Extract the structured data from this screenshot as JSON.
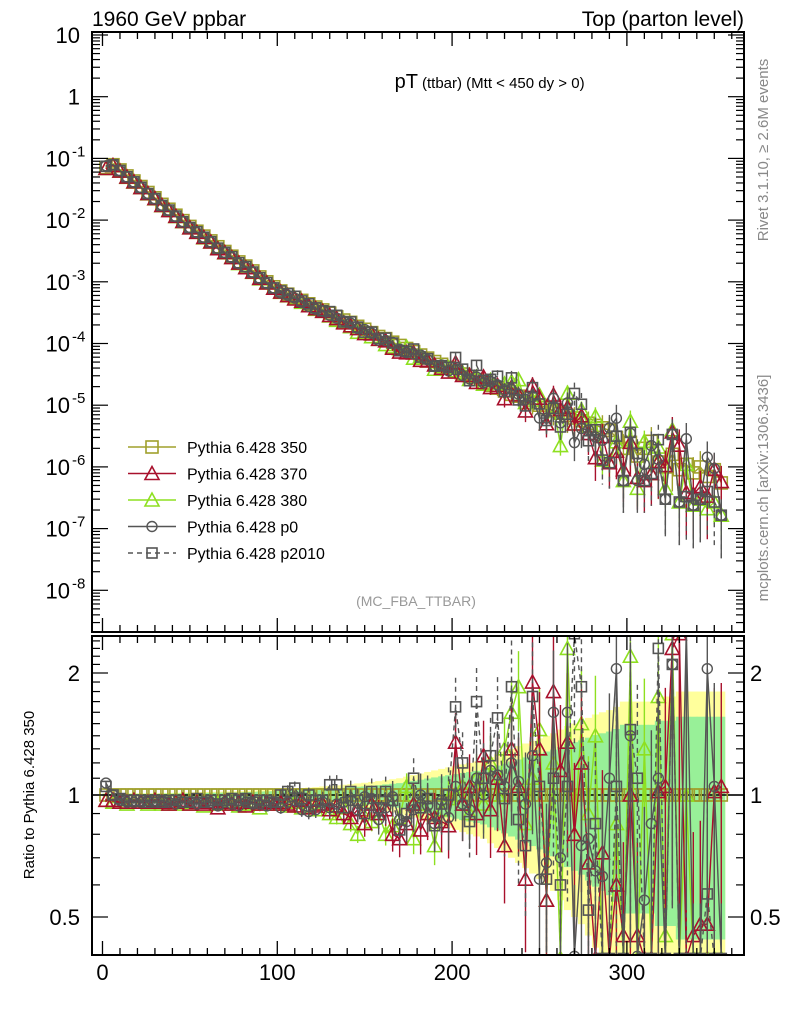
{
  "header": {
    "left": "1960 GeV ppbar",
    "right": "Top (parton level)"
  },
  "side_text": {
    "rivet": "Rivet 3.1.10, ≥ 2.6M events",
    "mcplots": "mcplots.cern.ch [arXiv:1306.3436]"
  },
  "chart_data": {
    "type": "line",
    "title": "pT",
    "title_sub": "(ttbar) (Mtt < 450 dy > 0)",
    "analysis_label": "(MC_FBA_TTBAR)",
    "xlabel": "",
    "ylabel_ratio": "Ratio to Pythia 6.428 350",
    "xlim": [
      -6,
      367
    ],
    "ylim_main_log": [
      3e-09,
      12
    ],
    "ylim_ratio": [
      0.4,
      2.47
    ],
    "x_ticks": [
      "0",
      "100",
      "200",
      "300"
    ],
    "x_tick_values": [
      0,
      100,
      200,
      300
    ],
    "y_ticks_main": [
      {
        "base": "10",
        "exp": ""
      },
      {
        "base": "1",
        "exp": ""
      },
      {
        "base": "10",
        "exp": "-1"
      },
      {
        "base": "10",
        "exp": "-2"
      },
      {
        "base": "10",
        "exp": "-3"
      },
      {
        "base": "10",
        "exp": "-4"
      },
      {
        "base": "10",
        "exp": "-5"
      },
      {
        "base": "10",
        "exp": "-6"
      },
      {
        "base": "10",
        "exp": "-7"
      },
      {
        "base": "10",
        "exp": "-8"
      }
    ],
    "y_tick_values_main_log10": [
      1,
      0,
      -1,
      -2,
      -3,
      -4,
      -5,
      -6,
      -7,
      -8
    ],
    "y_ticks_ratio": [
      "2",
      "1",
      "0.5"
    ],
    "y_tick_values_ratio": [
      2,
      1,
      0.5
    ],
    "legend_placement": "lower-left",
    "x": [
      2,
      6,
      10,
      14,
      18,
      22,
      26,
      30,
      34,
      38,
      42,
      46,
      50,
      54,
      58,
      62,
      66,
      70,
      74,
      78,
      82,
      86,
      90,
      94,
      98,
      102,
      106,
      110,
      114,
      118,
      122,
      126,
      130,
      134,
      138,
      142,
      146,
      150,
      154,
      158,
      162,
      166,
      170,
      174,
      178,
      182,
      186,
      190,
      194,
      198,
      202,
      206,
      210,
      214,
      218,
      222,
      226,
      230,
      234,
      238,
      242,
      246,
      250,
      254,
      258,
      262,
      266,
      270,
      274,
      278,
      282,
      286,
      290,
      294,
      298,
      302,
      306,
      310,
      314,
      318,
      322,
      326,
      330,
      334,
      338,
      342,
      346,
      350,
      354
    ],
    "reference_values": [
      0.071,
      0.079,
      0.065,
      0.052,
      0.043,
      0.035,
      0.028,
      0.023,
      0.018,
      0.015,
      0.012,
      0.0098,
      0.0079,
      0.0066,
      0.0055,
      0.0046,
      0.0037,
      0.0031,
      0.0026,
      0.0021,
      0.0018,
      0.0015,
      0.0012,
      0.001,
      0.00083,
      0.00071,
      0.00063,
      0.00056,
      0.0005,
      0.00044,
      0.00039,
      0.00035,
      0.00031,
      0.00027,
      0.00024,
      0.00022,
      0.00019,
      0.00017,
      0.00015,
      0.00013,
      0.00012,
      0.000105,
      9.3e-05,
      8.3e-05,
      7.4e-05,
      6.5e-05,
      5.8e-05,
      5.1e-05,
      4.6e-05,
      4.1e-05,
      3.6e-05,
      3.2e-05,
      2.9e-05,
      2.6e-05,
      2.3e-05,
      2.1e-05,
      1.9e-05,
      1.7e-05,
      1.5e-05,
      1.4e-05,
      1.3e-05,
      1.1e-05,
      1e-05,
      9.1e-06,
      8.1e-06,
      7.4e-06,
      6.8e-06,
      6.2e-06,
      5.6e-06,
      5.1e-06,
      4.7e-06,
      4.3e-06,
      3.9e-06,
      3e-06,
      2e-06,
      2.5e-06,
      1.5e-06,
      2e-06,
      2.6e-06,
      1.2e-06,
      1e-06,
      1.6e-06,
      9e-07,
      1.1e-06,
      8e-07,
      1e-06,
      7e-07,
      9e-07,
      5.5e-07
    ],
    "rel_err_350": [
      0.01,
      0.01,
      0.01,
      0.01,
      0.01,
      0.01,
      0.01,
      0.01,
      0.012,
      0.012,
      0.013,
      0.014,
      0.015,
      0.016,
      0.017,
      0.018,
      0.019,
      0.02,
      0.021,
      0.022,
      0.024,
      0.026,
      0.028,
      0.03,
      0.032,
      0.034,
      0.036,
      0.038,
      0.04,
      0.043,
      0.046,
      0.05,
      0.053,
      0.056,
      0.06,
      0.064,
      0.068,
      0.072,
      0.077,
      0.082,
      0.088,
      0.094,
      0.1,
      0.11,
      0.12,
      0.13,
      0.14,
      0.15,
      0.16,
      0.17,
      0.18,
      0.19,
      0.2,
      0.21,
      0.22,
      0.24,
      0.26,
      0.28,
      0.3,
      0.32,
      0.34,
      0.36,
      0.38,
      0.4,
      0.42,
      0.45,
      0.48,
      0.5,
      0.52,
      0.55,
      0.58,
      0.6,
      0.62,
      0.65,
      0.7,
      0.7,
      0.7,
      0.7,
      0.7,
      0.75,
      0.75,
      0.75,
      0.8,
      0.8,
      0.8,
      0.8,
      0.8,
      0.8,
      0.8
    ],
    "rel_err_380": [
      0.007,
      0.007,
      0.007,
      0.007,
      0.007,
      0.007,
      0.007,
      0.007,
      0.008,
      0.008,
      0.009,
      0.01,
      0.011,
      0.011,
      0.012,
      0.013,
      0.013,
      0.014,
      0.015,
      0.015,
      0.017,
      0.018,
      0.02,
      0.021,
      0.022,
      0.024,
      0.025,
      0.027,
      0.028,
      0.03,
      0.032,
      0.035,
      0.037,
      0.039,
      0.042,
      0.045,
      0.048,
      0.05,
      0.054,
      0.057,
      0.062,
      0.066,
      0.07,
      0.077,
      0.084,
      0.091,
      0.098,
      0.105,
      0.112,
      0.119,
      0.126,
      0.133,
      0.14,
      0.147,
      0.154,
      0.168,
      0.182,
      0.196,
      0.21,
      0.224,
      0.238,
      0.252,
      0.266,
      0.28,
      0.294,
      0.315,
      0.336,
      0.35,
      0.364,
      0.385,
      0.406,
      0.42,
      0.434,
      0.455,
      0.49,
      0.49,
      0.49,
      0.49,
      0.49,
      0.525,
      0.525,
      0.525,
      0.56,
      0.56,
      0.56,
      0.56,
      0.56,
      0.56,
      0.56
    ],
    "series": [
      {
        "name": "Pythia 6.428 350",
        "color": "#a0a02c",
        "marker": "square",
        "dash": false,
        "band": "#ffff9c",
        "ratio": [
          1,
          1,
          1,
          1,
          1,
          1,
          1,
          1,
          1,
          1,
          1,
          1,
          1,
          1,
          1,
          1,
          1,
          1,
          1,
          1,
          1,
          1,
          1,
          1,
          1,
          1,
          1,
          1,
          1,
          1,
          1,
          1,
          1,
          1,
          1,
          1,
          1,
          1,
          1,
          1,
          1,
          1,
          1,
          1,
          1,
          1,
          1,
          1,
          1,
          1,
          1,
          1,
          1,
          1,
          1,
          1,
          1,
          1,
          1,
          1,
          1,
          1,
          1,
          1,
          1,
          1,
          1,
          1,
          1,
          1,
          1,
          1,
          1,
          1,
          1,
          1,
          1,
          1,
          1,
          1,
          1,
          1,
          1,
          1,
          1,
          1,
          1,
          1,
          1
        ]
      },
      {
        "name": "Pythia 6.428 370",
        "color": "#a8102c",
        "marker": "triangle",
        "dash": false,
        "ratio": [
          0.97,
          0.97,
          0.96,
          0.96,
          0.97,
          0.96,
          0.96,
          0.97,
          0.96,
          0.95,
          0.96,
          0.97,
          0.95,
          0.96,
          0.95,
          0.96,
          0.93,
          0.96,
          0.95,
          0.96,
          0.94,
          0.96,
          0.95,
          0.96,
          0.95,
          0.96,
          0.95,
          0.94,
          0.97,
          0.93,
          0.94,
          0.95,
          0.92,
          0.94,
          0.9,
          0.88,
          0.92,
          0.85,
          0.95,
          0.9,
          0.92,
          0.8,
          0.78,
          0.85,
          0.95,
          0.82,
          0.9,
          0.88,
          0.86,
          0.84,
          1.35,
          0.95,
          1.05,
          0.9,
          1.25,
          0.92,
          1.1,
          0.75,
          1.3,
          1.05,
          0.62,
          1.9,
          1.3,
          0.55,
          1.8,
          1.15,
          1.35,
          0.8,
          1.2,
          0.68,
          0.3,
          0.72,
          0.3,
          0.6,
          0.45,
          1.0,
          0.45,
          0.3,
          0.3,
          1.02,
          1.05,
          2.3,
          2.5,
          0.35,
          0.45,
          0.48,
          0.48,
          1.02,
          1.05
        ]
      },
      {
        "name": "Pythia 6.428 380",
        "color": "#8ee020",
        "marker": "triangle",
        "dash": false,
        "band": "#98f098",
        "ratio": [
          0.97,
          0.96,
          0.96,
          0.95,
          0.96,
          0.96,
          0.95,
          0.96,
          0.95,
          0.96,
          0.95,
          0.96,
          0.95,
          0.96,
          0.94,
          0.96,
          0.95,
          0.95,
          0.96,
          0.94,
          0.95,
          0.95,
          0.93,
          0.96,
          0.95,
          0.95,
          0.94,
          0.96,
          0.93,
          0.94,
          0.92,
          0.95,
          0.9,
          0.88,
          0.93,
          0.85,
          0.8,
          0.92,
          0.86,
          0.9,
          0.8,
          0.84,
          0.88,
          1.05,
          0.78,
          0.95,
          0.9,
          0.75,
          0.92,
          0.98,
          1.0,
          1.05,
          0.9,
          1.1,
          0.95,
          1.2,
          1.0,
          1.3,
          1.6,
          1.85,
          0.85,
          1.1,
          1.45,
          0.55,
          1.2,
          0.3,
          2.3,
          0.8,
          1.5,
          0.9,
          1.4,
          0.3,
          0.3,
          0.85,
          0.3,
          2.2,
          0.3,
          1.3,
          0.3,
          1.75,
          0.45,
          2.5,
          0.3,
          1.0,
          0.3,
          0.3,
          0.3,
          0.3,
          0.3
        ]
      },
      {
        "name": "Pythia 6.428 p0",
        "color": "#555555",
        "marker": "circle",
        "dash": false,
        "ratio": [
          1.07,
          1.0,
          0.97,
          0.96,
          0.96,
          0.96,
          0.97,
          0.96,
          0.97,
          0.96,
          0.95,
          0.96,
          0.96,
          0.95,
          0.96,
          0.96,
          0.94,
          0.96,
          0.95,
          0.94,
          0.96,
          0.95,
          0.95,
          0.94,
          0.96,
          0.93,
          0.96,
          0.97,
          0.92,
          0.91,
          0.92,
          0.96,
          0.93,
          0.95,
          0.96,
          0.97,
          0.92,
          0.99,
          0.98,
          0.87,
          0.93,
          0.99,
          0.87,
          0.86,
          0.92,
          1.0,
          0.94,
          0.85,
          0.97,
          0.88,
          1.05,
          0.95,
          0.92,
          1.1,
          1.0,
          1.15,
          1.12,
          1.05,
          1.2,
          1.08,
          0.95,
          1.25,
          0.62,
          0.68,
          1.6,
          0.7,
          1.6,
          0.4,
          0.75,
          0.78,
          0.65,
          0.63,
          1.1,
          2.05,
          0.3,
          1.4,
          0.4,
          0.55,
          0.85,
          1.1,
          0.3,
          2.1,
          0.3,
          2.6,
          0.3,
          0.3,
          2.05,
          1.05,
          0.3
        ]
      },
      {
        "name": "Pythia 6.428 p2010",
        "color": "#555555",
        "marker": "square-small",
        "dash": true,
        "ratio": [
          1.05,
          1.0,
          0.98,
          0.97,
          0.97,
          0.97,
          0.96,
          0.97,
          0.96,
          0.97,
          0.97,
          0.96,
          0.96,
          0.98,
          0.96,
          0.97,
          0.95,
          0.97,
          0.98,
          0.97,
          0.98,
          0.96,
          0.97,
          0.97,
          0.96,
          1.0,
          1.02,
          1.04,
          0.98,
          1.0,
          0.97,
          0.97,
          1.06,
          1.06,
          0.93,
          1.02,
          0.97,
          0.9,
          1.02,
          0.93,
          1.02,
          0.97,
          0.82,
          0.9,
          1.1,
          0.93,
          0.98,
          0.84,
          0.95,
          1.0,
          1.65,
          1.2,
          0.86,
          1.7,
          1.1,
          1.25,
          1.55,
          0.98,
          1.85,
          0.87,
          0.75,
          1.75,
          1.05,
          0.62,
          1.1,
          0.6,
          1.05,
          2.5,
          1.85,
          0.52,
          0.85,
          0.3,
          0.3,
          1.05,
          0.3,
          1.45,
          1.1,
          0.3,
          0.3,
          2.3,
          0.3,
          2.1,
          0.3,
          0.3,
          0.3,
          0.3,
          0.57,
          0.3,
          0.3
        ]
      }
    ]
  }
}
